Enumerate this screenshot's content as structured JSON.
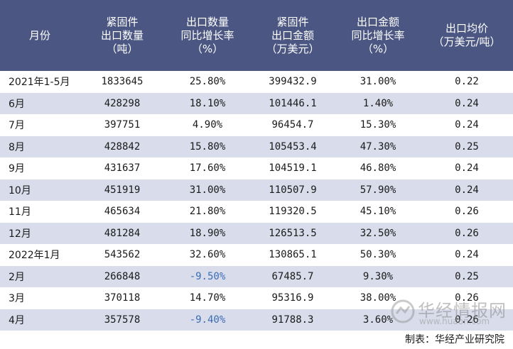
{
  "table": {
    "headers": [
      [
        "月份"
      ],
      [
        "紧固件",
        "出口数量",
        "（吨）"
      ],
      [
        "出口数量",
        "同比增长率",
        "（%）"
      ],
      [
        "紧固件",
        "出口金额",
        "（万美元）"
      ],
      [
        "出口金额",
        "同比增长率",
        "（%）"
      ],
      [
        "出口均价",
        "（万美元/吨）"
      ]
    ],
    "rows": [
      {
        "month": "2021年1-5月",
        "qty": "1833645",
        "qty_yoy": "25.80%",
        "amount": "399432.9",
        "amount_yoy": "31.00%",
        "price": "0.22"
      },
      {
        "month": "6月",
        "qty": "428298",
        "qty_yoy": "18.10%",
        "amount": "101446.1",
        "amount_yoy": "1.40%",
        "price": "0.24"
      },
      {
        "month": "7月",
        "qty": "397751",
        "qty_yoy": "4.90%",
        "amount": "96454.7",
        "amount_yoy": "15.30%",
        "price": "0.24"
      },
      {
        "month": "8月",
        "qty": "428842",
        "qty_yoy": "15.80%",
        "amount": "105453.4",
        "amount_yoy": "47.30%",
        "price": "0.25"
      },
      {
        "month": "9月",
        "qty": "431637",
        "qty_yoy": "17.60%",
        "amount": "104519.1",
        "amount_yoy": "46.80%",
        "price": "0.24"
      },
      {
        "month": "10月",
        "qty": "451919",
        "qty_yoy": "31.00%",
        "amount": "110507.9",
        "amount_yoy": "57.90%",
        "price": "0.24"
      },
      {
        "month": "11月",
        "qty": "465634",
        "qty_yoy": "21.80%",
        "amount": "119320.5",
        "amount_yoy": "45.10%",
        "price": "0.26"
      },
      {
        "month": "12月",
        "qty": "481284",
        "qty_yoy": "18.90%",
        "amount": "126513.5",
        "amount_yoy": "32.50%",
        "price": "0.26"
      },
      {
        "month": "2022年1月",
        "qty": "543562",
        "qty_yoy": "32.60%",
        "amount": "130865.1",
        "amount_yoy": "50.30%",
        "price": "0.24"
      },
      {
        "month": "2月",
        "qty": "266848",
        "qty_yoy": "-9.50%",
        "amount": "67485.7",
        "amount_yoy": "9.30%",
        "price": "0.25"
      },
      {
        "month": "3月",
        "qty": "370118",
        "qty_yoy": "14.70%",
        "amount": "95316.9",
        "amount_yoy": "38.00%",
        "price": "0.26"
      },
      {
        "month": "4月",
        "qty": "357578",
        "qty_yoy": "-9.40%",
        "amount": "91788.3",
        "amount_yoy": "3.60%",
        "price": "0.26"
      }
    ]
  },
  "footer": {
    "source": "制表：华经产业研究院"
  },
  "watermark": {
    "text": "华经情报网",
    "url": "www.huaon.com"
  },
  "colors": {
    "header_bg": "#4b5782",
    "stripe": "#d9dcea",
    "negative": "#3a6db5"
  }
}
